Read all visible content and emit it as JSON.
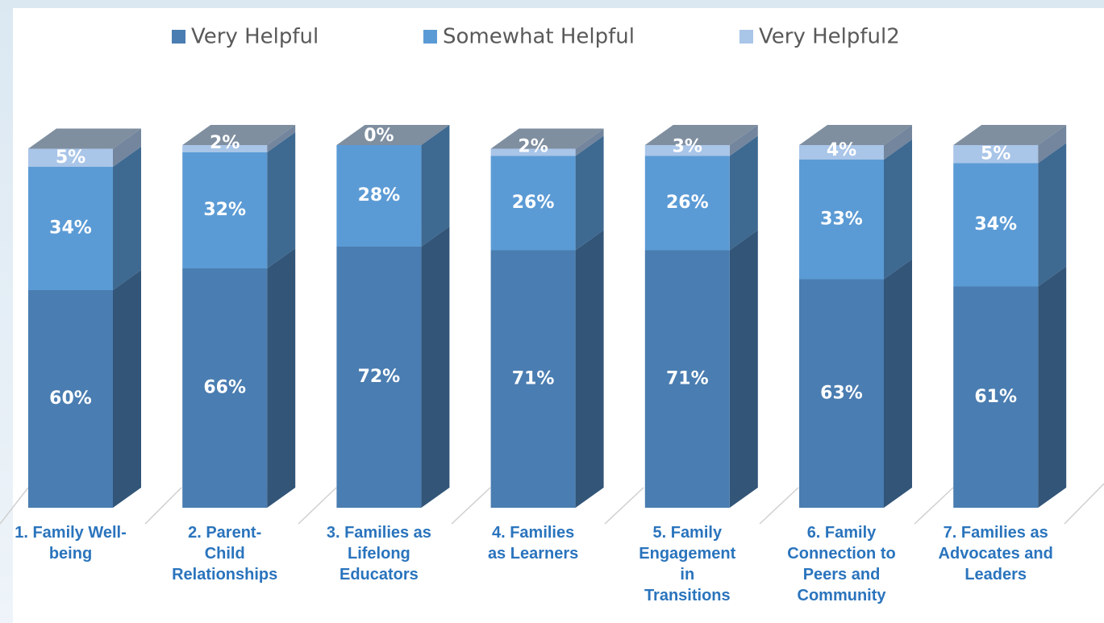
{
  "chart_data": {
    "type": "bar3d_stacked",
    "categories": [
      "1. Family Well-being",
      "2.  Parent-Child Relationships",
      "3. Families as Lifelong Educators",
      "4. Families as Learners",
      "5. Family Engagement in Transitions",
      "6. Family Connection to Peers and Community",
      "7. Families as Advocates and Leaders"
    ],
    "series": [
      {
        "name": "Very Helpful",
        "color": "#4a7db1",
        "values": [
          60,
          66,
          72,
          71,
          71,
          63,
          61
        ],
        "value_labels": [
          "60%",
          "66%",
          "72%",
          "71%",
          "71%",
          "63%",
          "61%"
        ]
      },
      {
        "name": "Somewhat Helpful",
        "color": "#5b9bd5",
        "values": [
          34,
          32,
          28,
          26,
          26,
          33,
          34
        ],
        "value_labels": [
          "34%",
          "32%",
          "28%",
          "26%",
          "26%",
          "33%",
          "34%"
        ]
      },
      {
        "name": "Very Helpful2",
        "color": "#a9c5e8",
        "values": [
          5,
          2,
          0,
          2,
          3,
          4,
          5
        ],
        "value_labels": [
          "5%",
          "2%",
          "0%",
          "2%",
          "3%",
          "4%",
          "5%"
        ]
      }
    ],
    "legend": "top"
  }
}
